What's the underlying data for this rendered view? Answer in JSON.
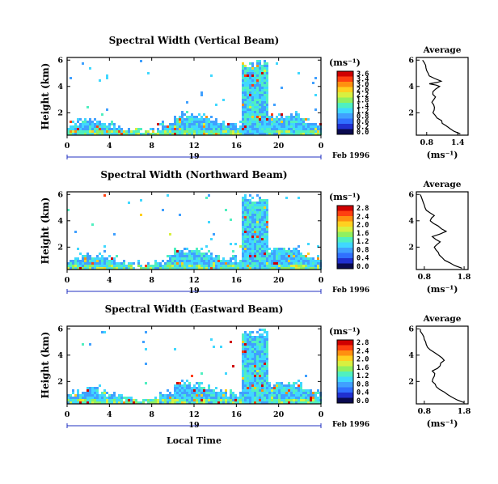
{
  "chart_data": [
    {
      "type": "heatmap",
      "title": "Spectral Width (Vertical Beam)",
      "ylabel": "Height (km)",
      "x_ticks": [
        "0",
        "4",
        "8",
        "12",
        "16",
        "20",
        "0"
      ],
      "y_ticks": [
        "2",
        "4",
        "6"
      ],
      "day_label": "19",
      "date_label": "Feb 1996",
      "colorbar_unit": "(ms⁻¹)",
      "colorbar_ticks": [
        "3.6",
        "3.4",
        "3.0",
        "2.6",
        "2.2",
        "1.8",
        "1.4",
        "1.2",
        "0.8",
        "0.6",
        "0.2",
        "0.0"
      ],
      "xlim_hours": [
        0,
        24
      ],
      "ylim_km": [
        0.3,
        6.2
      ],
      "profile": {
        "title": "Average",
        "xlabel": "(ms⁻¹)",
        "x_ticks": [
          "0.8",
          "1.4"
        ],
        "y_ticks": [
          "2",
          "4",
          "6"
        ],
        "xlim": [
          0.6,
          1.6
        ],
        "heights_km": [
          0.4,
          0.8,
          1.2,
          1.6,
          2.0,
          2.4,
          2.8,
          3.2,
          3.6,
          4.0,
          4.2,
          4.4,
          4.8,
          5.2,
          5.6,
          6.0
        ],
        "width_ms": [
          1.45,
          1.25,
          1.1,
          1.0,
          0.92,
          0.95,
          0.9,
          0.97,
          0.92,
          1.05,
          0.85,
          1.08,
          0.85,
          0.8,
          0.78,
          0.72
        ]
      }
    },
    {
      "type": "heatmap",
      "title": "Spectral Width (Northward Beam)",
      "ylabel": "Height (km)",
      "x_ticks": [
        "0",
        "4",
        "8",
        "12",
        "16",
        "20",
        "0"
      ],
      "y_ticks": [
        "2",
        "4",
        "6"
      ],
      "day_label": "19",
      "date_label": "Feb 1996",
      "colorbar_unit": "(ms⁻¹)",
      "colorbar_ticks": [
        "2.8",
        "2.4",
        "2.0",
        "1.6",
        "1.2",
        "0.8",
        "0.4",
        "0.0"
      ],
      "xlim_hours": [
        0,
        24
      ],
      "ylim_km": [
        0.3,
        6.2
      ],
      "profile": {
        "title": "Average",
        "xlabel": "(ms⁻¹)",
        "x_ticks": [
          "0.8",
          "1.8"
        ],
        "y_ticks": [
          "2",
          "4",
          "6"
        ],
        "xlim": [
          0.6,
          1.9
        ],
        "heights_km": [
          0.4,
          0.8,
          1.2,
          1.6,
          2.0,
          2.4,
          2.8,
          3.2,
          3.6,
          4.0,
          4.4,
          4.8,
          5.2,
          5.6,
          6.0
        ],
        "width_ms": [
          1.75,
          1.45,
          1.25,
          1.15,
          1.05,
          1.2,
          1.0,
          1.35,
          1.15,
          0.95,
          1.05,
          0.85,
          0.8,
          0.75,
          0.7
        ]
      }
    },
    {
      "type": "heatmap",
      "title": "Spectral Width (Eastward Beam)",
      "ylabel": "Height (km)",
      "x_ticks": [
        "0",
        "4",
        "8",
        "12",
        "16",
        "20",
        "0"
      ],
      "y_ticks": [
        "2",
        "4",
        "6"
      ],
      "day_label": "19",
      "date_label": "Feb 1996",
      "colorbar_unit": "(ms⁻¹)",
      "colorbar_ticks": [
        "2.8",
        "2.4",
        "2.0",
        "1.6",
        "1.2",
        "0.8",
        "0.4",
        "0.0"
      ],
      "xlim_hours": [
        0,
        24
      ],
      "ylim_km": [
        0.3,
        6.2
      ],
      "profile": {
        "title": "Average",
        "xlabel": "(ms⁻¹)",
        "x_ticks": [
          "0.8",
          "1.8"
        ],
        "y_ticks": [
          "2",
          "4",
          "6"
        ],
        "xlim": [
          0.6,
          1.9
        ],
        "heights_km": [
          0.4,
          0.8,
          1.2,
          1.6,
          2.0,
          2.4,
          2.8,
          3.2,
          3.6,
          4.0,
          4.4,
          4.8,
          5.2,
          5.6,
          6.0
        ],
        "width_ms": [
          1.8,
          1.5,
          1.3,
          1.1,
          1.0,
          1.05,
          1.0,
          1.2,
          1.3,
          1.15,
          0.95,
          0.85,
          0.8,
          0.75,
          0.7
        ]
      }
    }
  ],
  "footer": {
    "xlabel": "Local Time"
  },
  "colors": {
    "scale": [
      "#0a0a50",
      "#2030d0",
      "#3070ff",
      "#40a0ff",
      "#40d8ff",
      "#50f0c0",
      "#90f060",
      "#d8f040",
      "#ffd020",
      "#ff9010",
      "#ff4010",
      "#d00000"
    ]
  }
}
